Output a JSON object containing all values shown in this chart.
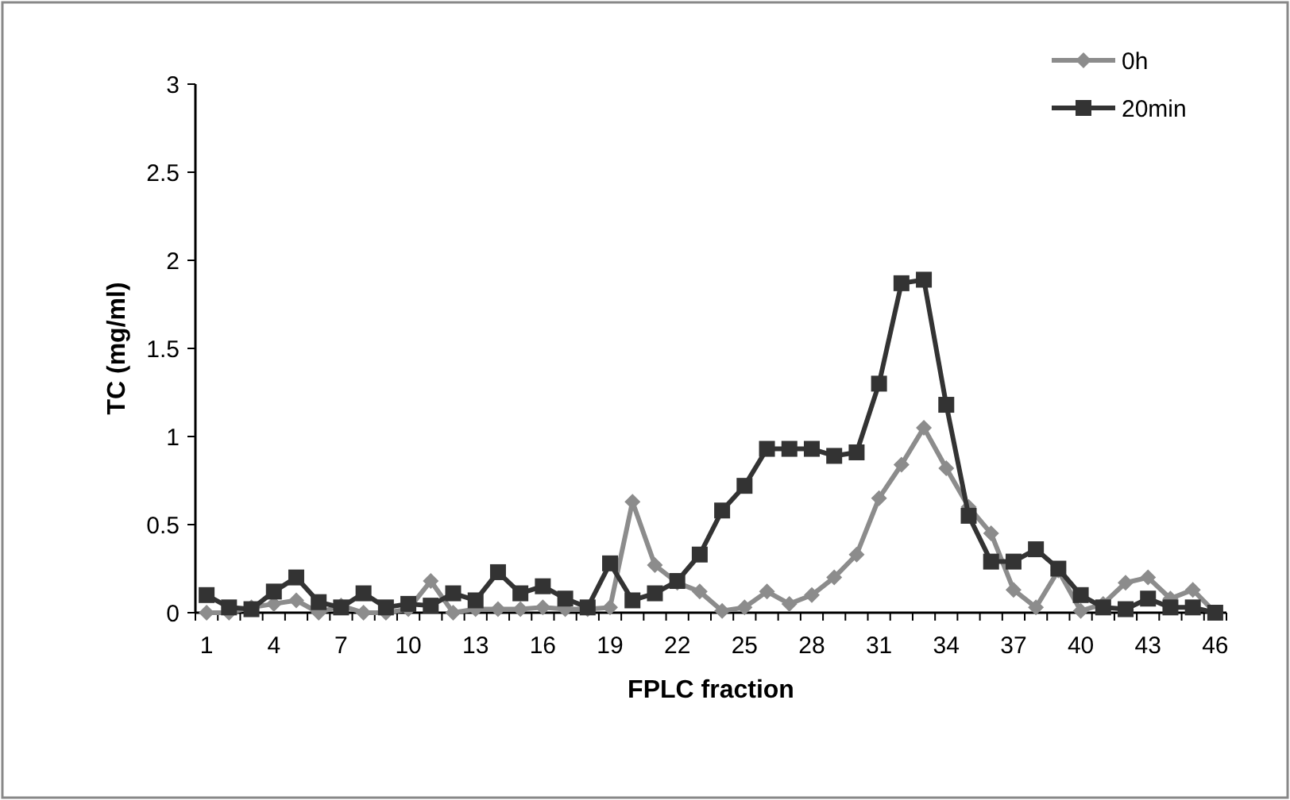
{
  "chart_data": {
    "type": "line",
    "xlabel": "FPLC fraction",
    "ylabel": "TC (mg/ml)",
    "categories": [
      "1",
      null,
      null,
      "4",
      null,
      null,
      "7",
      null,
      null,
      "10",
      null,
      null,
      "13",
      null,
      null,
      "16",
      null,
      null,
      "19",
      null,
      null,
      "22",
      null,
      null,
      "25",
      null,
      null,
      "28",
      null,
      null,
      "31",
      null,
      null,
      "34",
      null,
      null,
      "37",
      null,
      null,
      "40",
      null,
      null,
      "43",
      null,
      null,
      "46"
    ],
    "series": [
      {
        "name": "0h",
        "color": "#8c8c8c",
        "marker": "diamond",
        "values": [
          0,
          0,
          0.03,
          0.05,
          0.07,
          0,
          0.04,
          0,
          0,
          0.02,
          0.18,
          0,
          0.02,
          0.02,
          0.02,
          0.03,
          0.02,
          0.02,
          0.03,
          0.63,
          0.27,
          0.17,
          0.12,
          0.01,
          0.03,
          0.12,
          0.05,
          0.1,
          0.2,
          0.33,
          0.65,
          0.84,
          1.05,
          0.82,
          0.6,
          0.45,
          0.13,
          0.03,
          0.24,
          0.01,
          0.05,
          0.17,
          0.2,
          0.08,
          0.13,
          0
        ]
      },
      {
        "name": "20min",
        "color": "#333333",
        "marker": "square",
        "values": [
          0.1,
          0.03,
          0.02,
          0.12,
          0.2,
          0.06,
          0.03,
          0.11,
          0.03,
          0.05,
          0.04,
          0.11,
          0.07,
          0.23,
          0.11,
          0.15,
          0.08,
          0.03,
          0.28,
          0.07,
          0.11,
          0.18,
          0.33,
          0.58,
          0.72,
          0.93,
          0.93,
          0.93,
          0.89,
          0.91,
          1.3,
          1.87,
          1.89,
          1.18,
          0.55,
          0.29,
          0.29,
          0.36,
          0.25,
          0.1,
          0.03,
          0.02,
          0.08,
          0.03,
          0.03,
          0
        ]
      }
    ],
    "ylim": [
      0,
      3
    ],
    "yticks": [
      0,
      0.5,
      1,
      1.5,
      2,
      2.5,
      3
    ],
    "grid": false,
    "legend": "top right",
    "line_style": "solid"
  }
}
